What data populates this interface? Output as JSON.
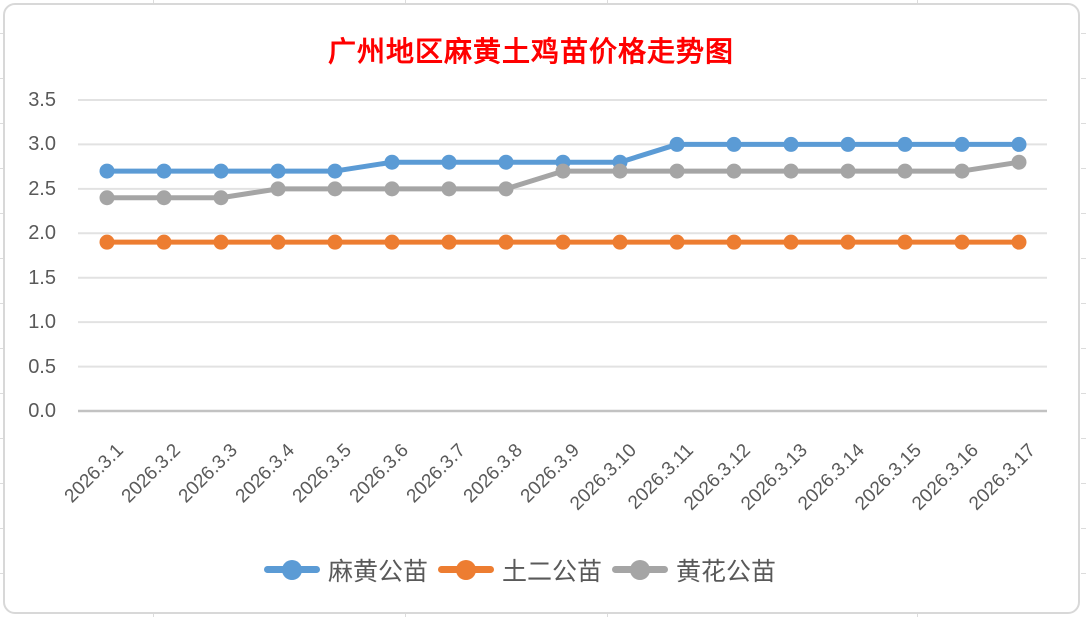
{
  "window": {
    "background": "#FFFFFF",
    "frame_border_color": "#D8D8D8"
  },
  "chart_data": {
    "type": "line",
    "title": "广州地区麻黄土鸡苗价格走势图",
    "title_color": "#FF0000",
    "categories": [
      "2026.3.1",
      "2026.3.2",
      "2026.3.3",
      "2026.3.4",
      "2026.3.5",
      "2026.3.6",
      "2026.3.7",
      "2026.3.8",
      "2026.3.9",
      "2026.3.10",
      "2026.3.11",
      "2026.3.12",
      "2026.3.13",
      "2026.3.14",
      "2026.3.15",
      "2026.3.16",
      "2026.3.17"
    ],
    "series": [
      {
        "name": "麻黄公苗",
        "color": "#5B9BD5",
        "values": [
          2.7,
          2.7,
          2.7,
          2.7,
          2.7,
          2.8,
          2.8,
          2.8,
          2.8,
          2.8,
          3.0,
          3.0,
          3.0,
          3.0,
          3.0,
          3.0,
          3.0
        ]
      },
      {
        "name": "土二公苗",
        "color": "#ED7D31",
        "values": [
          1.9,
          1.9,
          1.9,
          1.9,
          1.9,
          1.9,
          1.9,
          1.9,
          1.9,
          1.9,
          1.9,
          1.9,
          1.9,
          1.9,
          1.9,
          1.9,
          1.9
        ]
      },
      {
        "name": "黄花公苗",
        "color": "#A5A5A5",
        "values": [
          2.4,
          2.4,
          2.4,
          2.5,
          2.5,
          2.5,
          2.5,
          2.5,
          2.7,
          2.7,
          2.7,
          2.7,
          2.7,
          2.7,
          2.7,
          2.7,
          2.8
        ]
      }
    ],
    "ylim": [
      0,
      3.5
    ],
    "y_tick_step": 0.5,
    "y_tick_labels": [
      "0.0",
      "0.5",
      "1.0",
      "1.5",
      "2.0",
      "2.5",
      "3.0",
      "3.5"
    ],
    "grid": true,
    "gridline_color": "#E2E2E2",
    "axis_line_color": "#C2C2C2",
    "axis_label_color": "#595959",
    "legend_position": "bottom",
    "xlabel": "",
    "ylabel": ""
  }
}
